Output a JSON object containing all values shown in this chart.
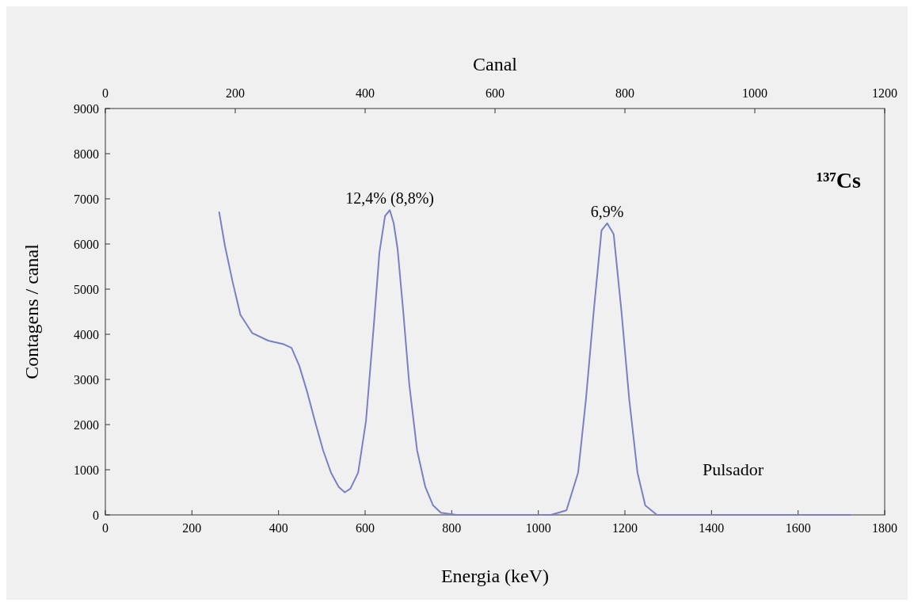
{
  "chart_data": {
    "type": "line",
    "xlabel": "Energia (keV)",
    "ylabel": "Contagens / canal",
    "x2label": "Canal",
    "xlim": [
      0,
      1800
    ],
    "xticks": [
      0,
      200,
      400,
      600,
      800,
      1000,
      1200,
      1400,
      1600,
      1800
    ],
    "x2lim": [
      0,
      1200
    ],
    "x2ticks": [
      0,
      200,
      400,
      600,
      800,
      1000,
      1200
    ],
    "ylim": [
      0,
      9000
    ],
    "yticks": [
      0,
      1000,
      2000,
      3000,
      4000,
      5000,
      6000,
      7000,
      8000,
      9000
    ],
    "grid": false,
    "marker": "none",
    "line_style": "solid",
    "series": [
      {
        "color": "#7b7fc4",
        "x": [
          263,
          276,
          294,
          312,
          339,
          376,
          412,
          430,
          448,
          466,
          484,
          503,
          521,
          539,
          553,
          566,
          584,
          602,
          620,
          633,
          646,
          657,
          666,
          675,
          688,
          702,
          720,
          739,
          757,
          775,
          811,
          1029,
          1065,
          1092,
          1110,
          1128,
          1146,
          1159,
          1174,
          1192,
          1210,
          1229,
          1247,
          1274,
          1720
        ],
        "values": [
          6700,
          5970,
          5160,
          4430,
          4030,
          3860,
          3780,
          3700,
          3300,
          2730,
          2080,
          1430,
          940,
          620,
          500,
          580,
          940,
          2080,
          4190,
          5810,
          6620,
          6750,
          6460,
          5890,
          4510,
          2890,
          1430,
          620,
          210,
          50,
          0,
          0,
          100,
          940,
          2560,
          4510,
          6300,
          6460,
          6220,
          4510,
          2560,
          940,
          210,
          0,
          0
        ]
      }
    ],
    "annotations": [
      {
        "text": "12,4% (8,8%)",
        "x": 657,
        "y": 6750
      },
      {
        "text": "6,9%",
        "x": 1159,
        "y": 6460
      },
      "Pulsador",
      "¹³⁷Cs"
    ]
  }
}
